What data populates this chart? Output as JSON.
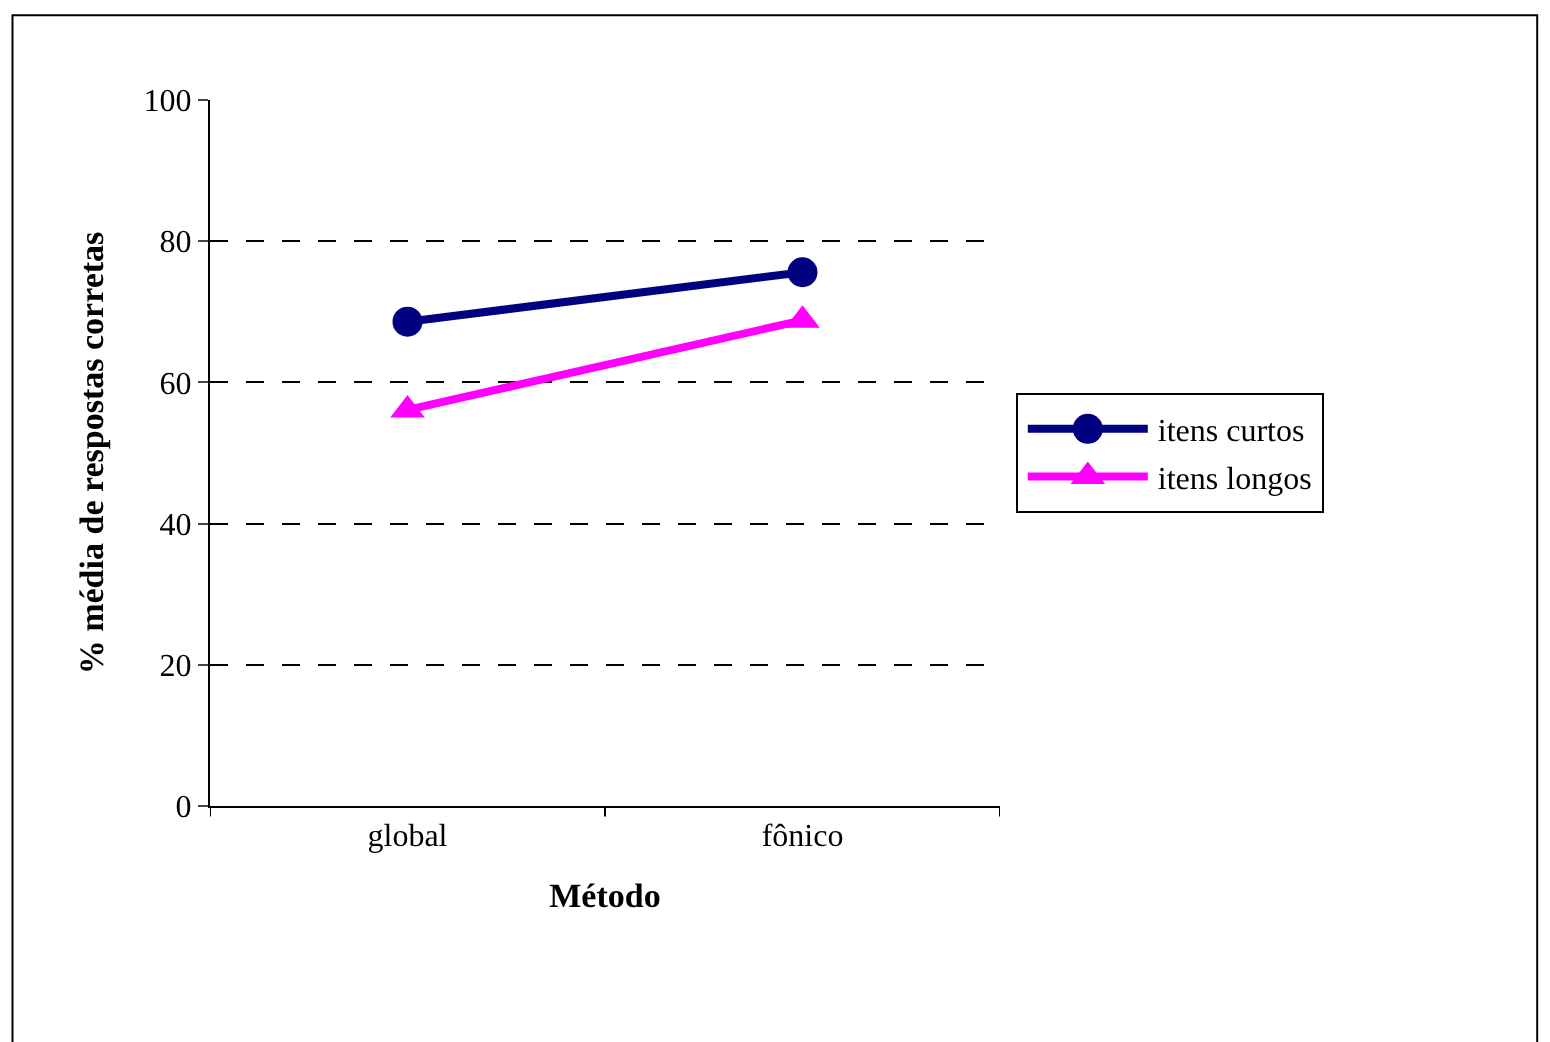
{
  "chart_data": {
    "type": "line",
    "xlabel": "Método",
    "ylabel": "% média de respostas corretas",
    "categories": [
      "global",
      "fônico"
    ],
    "series": [
      {
        "name": "itens curtos",
        "color": "#000080",
        "values": [
          68.6,
          75.6
        ],
        "marker": "circle"
      },
      {
        "name": "itens longos",
        "color": "#ff00ff",
        "values": [
          56.1,
          68.8
        ],
        "marker": "triangle"
      }
    ],
    "ylim": [
      0,
      100
    ],
    "yticks": [
      0,
      20,
      40,
      60,
      80,
      100
    ],
    "grid": "y",
    "legend": "right"
  }
}
